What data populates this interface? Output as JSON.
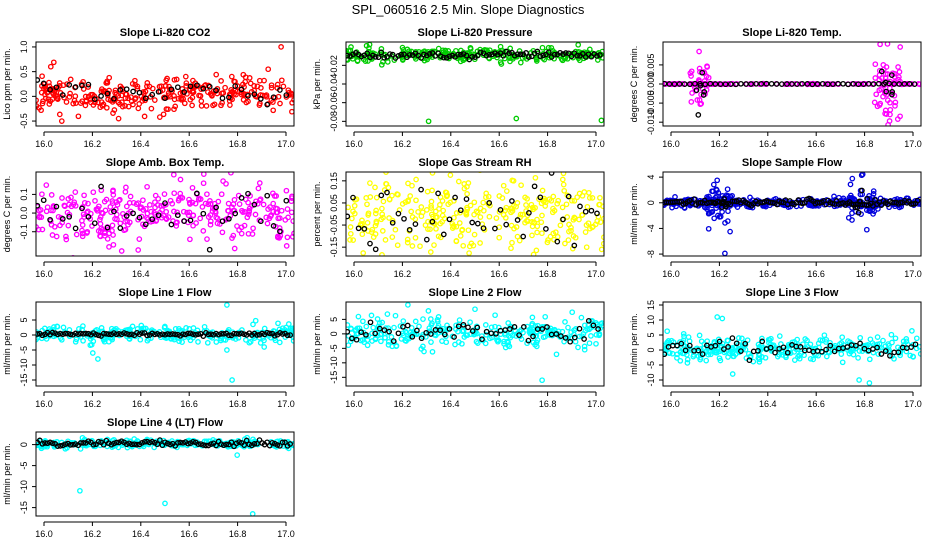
{
  "title": "SPL_060516  2.5 Min. Slope Diagnostics",
  "colors": {
    "red": "#ff0000",
    "green": "#00cc00",
    "magenta": "#ff00ff",
    "yellow": "#ffff00",
    "blue": "#0000dd",
    "cyan": "#00ffff",
    "black": "#000000"
  },
  "chart_data": [
    {
      "type": "scatter",
      "title": "Slope Li-820 CO2",
      "ylabel": "Lico ppm per min.",
      "xlim": [
        16.0,
        17.0
      ],
      "ylim": [
        -0.6,
        1.1
      ],
      "xticks": [
        "16.0",
        "16.2",
        "16.4",
        "16.6",
        "16.8",
        "17.0"
      ],
      "yticks": [
        {
          "v": -0.5,
          "l": "-0.5"
        },
        {
          "v": 0.0,
          "l": "0.0"
        },
        {
          "v": 0.5,
          "l": "0.5"
        },
        {
          "v": 1.0,
          "l": "1.0"
        }
      ],
      "color": "red",
      "center": 0.05,
      "spread": 0.18,
      "black_spread": 0.12,
      "n": 300,
      "nb": 40,
      "seed": 11,
      "outliers": [
        [
          16.95,
          1.0
        ],
        [
          16.32,
          -0.45
        ],
        [
          16.9,
          0.55
        ],
        [
          16.1,
          -0.5
        ],
        [
          16.48,
          -0.42
        ]
      ]
    },
    {
      "type": "scatter",
      "title": "Slope Li-820 Pressure",
      "ylabel": "kPa per min.",
      "xlim": [
        16.0,
        17.0
      ],
      "ylim": [
        -0.085,
        0.005
      ],
      "xticks": [
        "16.0",
        "16.2",
        "16.4",
        "16.6",
        "16.8",
        "17.0"
      ],
      "yticks": [
        {
          "v": -0.08,
          "l": "-0.08"
        },
        {
          "v": -0.06,
          "l": "-0.06"
        },
        {
          "v": -0.04,
          "l": "-0.04"
        },
        {
          "v": -0.02,
          "l": "-0.02"
        }
      ],
      "color": "green",
      "center": -0.009,
      "spread": 0.0035,
      "black_spread": 0.002,
      "n": 260,
      "nb": 90,
      "seed": 22,
      "outliers": [
        [
          16.32,
          -0.08
        ],
        [
          16.66,
          -0.077
        ],
        [
          16.99,
          -0.079
        ],
        [
          16.9,
          0.002
        ],
        [
          16.08,
          0.001
        ]
      ]
    },
    {
      "type": "scatter",
      "title": "Slope Li-820 Temp.",
      "ylabel": "degrees C per min.",
      "xlim": [
        16.0,
        17.0
      ],
      "ylim": [
        -0.011,
        0.011
      ],
      "xticks": [
        "16.0",
        "16.2",
        "16.4",
        "16.6",
        "16.8",
        "17.0"
      ],
      "yticks": [
        {
          "v": -0.01,
          "l": "-0.010"
        },
        {
          "v": -0.005,
          "l": "-0.005"
        },
        {
          "v": 0.0,
          "l": "0.000"
        },
        {
          "v": 0.005,
          "l": "0.005"
        }
      ],
      "color": "magenta",
      "center": 0.0,
      "spread": 5e-05,
      "black_spread": 5e-05,
      "n": 110,
      "nb": 50,
      "seed": 33,
      "bursts": [
        {
          "x": 16.14,
          "w": 0.04,
          "amp": 0.004,
          "n": 30
        },
        {
          "x": 16.87,
          "w": 0.05,
          "amp": 0.005,
          "n": 55
        }
      ],
      "outliers": [
        [
          16.14,
          0.0085
        ],
        [
          16.87,
          0.0105
        ],
        [
          16.88,
          -0.008
        ]
      ]
    },
    {
      "type": "scatter",
      "title": "Slope Amb. Box Temp.",
      "ylabel": "degrees C per min.",
      "xlim": [
        16.0,
        17.0
      ],
      "ylim": [
        -0.23,
        0.22
      ],
      "xticks": [
        "16.0",
        "16.2",
        "16.4",
        "16.6",
        "16.8",
        "17.0"
      ],
      "yticks": [
        {
          "v": -0.1,
          "l": "-0.1"
        },
        {
          "v": 0.0,
          "l": "0.0"
        },
        {
          "v": 0.1,
          "l": "0.1"
        }
      ],
      "color": "magenta",
      "center": 0.0,
      "spread": 0.08,
      "black_spread": 0.06,
      "n": 320,
      "nb": 40,
      "seed": 44,
      "outliers": [
        [
          16.04,
          0.15
        ],
        [
          16.56,
          0.18
        ],
        [
          16.77,
          -0.19
        ],
        [
          16.3,
          -0.17
        ]
      ]
    },
    {
      "type": "scatter",
      "title": "Slope Gas Stream RH",
      "ylabel": "percent per min.",
      "xlim": [
        16.0,
        17.0
      ],
      "ylim": [
        -0.19,
        0.19
      ],
      "xticks": [
        "16.0",
        "16.2",
        "16.4",
        "16.6",
        "16.8",
        "17.0"
      ],
      "yticks": [
        {
          "v": -0.15,
          "l": "-0.15"
        },
        {
          "v": -0.05,
          "l": "-0.05"
        },
        {
          "v": 0.05,
          "l": "0.05"
        },
        {
          "v": 0.15,
          "l": "0.15"
        }
      ],
      "color": "yellow",
      "center": 0.0,
      "spread": 0.09,
      "black_spread": 0.07,
      "n": 320,
      "nb": 45,
      "seed": 55,
      "outliers": []
    },
    {
      "type": "scatter",
      "title": "Slope Sample Flow",
      "ylabel": "ml/min per min.",
      "xlim": [
        16.0,
        17.0
      ],
      "ylim": [
        -8.3,
        4.8
      ],
      "xticks": [
        "16.0",
        "16.2",
        "16.4",
        "16.6",
        "16.8",
        "17.0"
      ],
      "yticks": [
        {
          "v": -8,
          "l": "-8"
        },
        {
          "v": -4,
          "l": "-4"
        },
        {
          "v": 0,
          "l": "0"
        },
        {
          "v": 4,
          "l": "4"
        }
      ],
      "color": "blue",
      "center": 0.0,
      "spread": 0.35,
      "black_spread": 0.25,
      "n": 320,
      "nb": 120,
      "seed": 66,
      "bursts": [
        {
          "x": 16.22,
          "w": 0.05,
          "amp": 1.8,
          "n": 45
        },
        {
          "x": 16.77,
          "w": 0.05,
          "amp": 2.0,
          "n": 45
        }
      ],
      "outliers": [
        [
          16.24,
          -7.9
        ],
        [
          16.77,
          4.3
        ],
        [
          16.21,
          3.5
        ],
        [
          16.79,
          -4.2
        ],
        [
          16.26,
          -4.5
        ]
      ]
    },
    {
      "type": "scatter",
      "title": "Slope Line 1 Flow",
      "ylabel": "ml/min per min.",
      "xlim": [
        16.0,
        17.0
      ],
      "ylim": [
        -17,
        11
      ],
      "xticks": [
        "16.0",
        "16.2",
        "16.4",
        "16.6",
        "16.8",
        "17.0"
      ],
      "yticks": [
        {
          "v": -15,
          "l": "-15"
        },
        {
          "v": -10,
          "l": "-10"
        },
        {
          "v": -5,
          "l": "-5"
        },
        {
          "v": 0,
          "l": "0"
        },
        {
          "v": 5,
          "l": "5"
        }
      ],
      "color": "cyan",
      "center": 0.3,
      "spread": 1.6,
      "black_spread": 0.3,
      "n": 260,
      "nb": 100,
      "seed": 77,
      "outliers": [
        [
          16.74,
          10
        ],
        [
          16.76,
          -15
        ],
        [
          16.22,
          -6
        ],
        [
          16.24,
          -8
        ],
        [
          16.74,
          -5
        ]
      ]
    },
    {
      "type": "scatter",
      "title": "Slope Line 2 Flow",
      "ylabel": "ml/min per min.",
      "xlim": [
        16.0,
        17.0
      ],
      "ylim": [
        -18,
        11
      ],
      "xticks": [
        "16.0",
        "16.2",
        "16.4",
        "16.6",
        "16.8",
        "17.0"
      ],
      "yticks": [
        {
          "v": -15,
          "l": "-15"
        },
        {
          "v": -10,
          "l": "-10"
        },
        {
          "v": -5,
          "l": "-5"
        },
        {
          "v": 0,
          "l": "0"
        },
        {
          "v": 5,
          "l": "5"
        }
      ],
      "color": "cyan",
      "center": 0.5,
      "spread": 2.6,
      "black_spread": 1.8,
      "n": 280,
      "nb": 55,
      "seed": 88,
      "outliers": [
        [
          16.24,
          10
        ],
        [
          16.76,
          -16
        ],
        [
          16.5,
          8.5
        ]
      ]
    },
    {
      "type": "scatter",
      "title": "Slope Line 3 Flow",
      "ylabel": "ml/min per min.",
      "xlim": [
        16.0,
        17.0
      ],
      "ylim": [
        -12,
        16
      ],
      "xticks": [
        "16.0",
        "16.2",
        "16.4",
        "16.6",
        "16.8",
        "17.0"
      ],
      "yticks": [
        {
          "v": -10,
          "l": "-10"
        },
        {
          "v": -5,
          "l": "-5"
        },
        {
          "v": 0,
          "l": "0"
        },
        {
          "v": 5,
          "l": "5"
        },
        {
          "v": 10,
          "l": "10"
        },
        {
          "v": 15,
          "l": "15"
        }
      ],
      "color": "cyan",
      "center": 0.5,
      "spread": 2.0,
      "black_spread": 1.2,
      "n": 300,
      "nb": 60,
      "seed": 99,
      "outliers": [
        [
          16.21,
          11
        ],
        [
          16.23,
          10.5
        ],
        [
          16.76,
          -10
        ],
        [
          16.8,
          -11
        ],
        [
          16.27,
          -8
        ]
      ]
    },
    {
      "type": "scatter",
      "title": "Slope Line 4 (LT) Flow",
      "ylabel": "ml/min per min.",
      "xlim": [
        16.0,
        17.0
      ],
      "ylim": [
        -17,
        3
      ],
      "xticks": [
        "16.0",
        "16.2",
        "16.4",
        "16.6",
        "16.8",
        "17.0"
      ],
      "yticks": [
        {
          "v": -15,
          "l": "-15"
        },
        {
          "v": -10,
          "l": "-10"
        },
        {
          "v": -5,
          "l": "-5"
        },
        {
          "v": 0,
          "l": "0"
        }
      ],
      "color": "cyan",
      "center": 0.2,
      "spread": 0.45,
      "black_spread": 0.35,
      "n": 280,
      "nb": 100,
      "seed": 111,
      "outliers": [
        [
          16.17,
          -11
        ],
        [
          16.5,
          -14
        ],
        [
          16.84,
          -16.5
        ],
        [
          16.78,
          -2.5
        ]
      ]
    }
  ]
}
